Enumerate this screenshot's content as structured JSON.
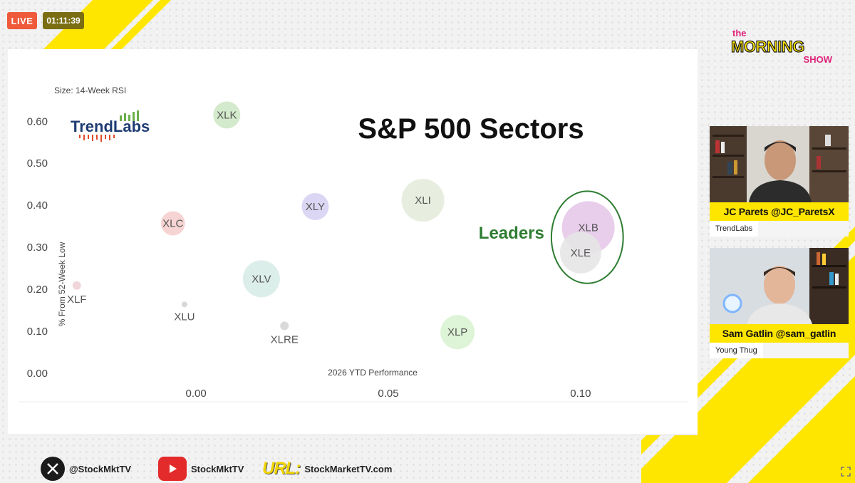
{
  "stream": {
    "live_label": "LIVE",
    "timer": "01:11:39"
  },
  "show_logo": {
    "line1": "the",
    "line2": "MORNING",
    "line3": "SHOW"
  },
  "chart_data": {
    "type": "scatter",
    "title": "S&P 500 Sectors",
    "size_note": "Size: 14-Week RSI",
    "xlabel": "2026 YTD Performance",
    "ylabel": "% From 52-Week Low",
    "xlim": [
      -0.043,
      0.128
    ],
    "ylim": [
      0.0,
      0.67
    ],
    "x_ticks": [
      "0.00",
      "0.05",
      "0.10"
    ],
    "x_tick_values": [
      0.0,
      0.05,
      0.1
    ],
    "y_ticks": [
      "0.00",
      "0.10",
      "0.20",
      "0.30",
      "0.40",
      "0.50",
      "0.60"
    ],
    "y_tick_values": [
      0.0,
      0.1,
      0.2,
      0.3,
      0.4,
      0.5,
      0.6
    ],
    "brand": "TrendLabs",
    "annotation": "Leaders",
    "points": [
      {
        "label": "XLK",
        "x": 0.008,
        "y": 0.615,
        "size": 19,
        "color": "#cfe8c6",
        "label_pos": "center"
      },
      {
        "label": "XLY",
        "x": 0.031,
        "y": 0.397,
        "size": 19,
        "color": "#d7d2f2",
        "label_pos": "center"
      },
      {
        "label": "XLI",
        "x": 0.059,
        "y": 0.412,
        "size": 30,
        "color": "#e4ecdc",
        "label_pos": "center"
      },
      {
        "label": "XLC",
        "x": -0.006,
        "y": 0.357,
        "size": 17,
        "color": "#f6cfcf",
        "label_pos": "center"
      },
      {
        "label": "XLB",
        "x": 0.102,
        "y": 0.347,
        "size": 37,
        "color": "#e7c9ea",
        "label_pos": "center"
      },
      {
        "label": "XLE",
        "x": 0.1,
        "y": 0.287,
        "size": 29,
        "color": "#e6e6e6",
        "label_pos": "center"
      },
      {
        "label": "XLV",
        "x": 0.017,
        "y": 0.225,
        "size": 26,
        "color": "#d8ece8",
        "label_pos": "center"
      },
      {
        "label": "XLF",
        "x": -0.031,
        "y": 0.209,
        "size": 6,
        "color": "#eed2d6",
        "label_pos": "below"
      },
      {
        "label": "XLU",
        "x": -0.003,
        "y": 0.164,
        "size": 4,
        "color": "#d4d4d4",
        "label_pos": "below"
      },
      {
        "label": "XLRE",
        "x": 0.023,
        "y": 0.113,
        "size": 6,
        "color": "#d5d5d5",
        "label_pos": "below"
      },
      {
        "label": "XLP",
        "x": 0.068,
        "y": 0.098,
        "size": 24,
        "color": "#d9f3d2",
        "label_pos": "center"
      }
    ],
    "highlight_group": [
      "XLB",
      "XLE"
    ]
  },
  "guests": [
    {
      "name": "JC Parets @JC_ParetsX",
      "affiliation": "TrendLabs"
    },
    {
      "name": "Sam Gatlin @sam_gatlin",
      "affiliation": "Young Thug"
    }
  ],
  "footer": {
    "x_handle": "@StockMktTV",
    "youtube_handle": "StockMktTV",
    "url_label": "URL:",
    "url": "StockMarketTV.com"
  },
  "colors": {
    "accent": "#ffe600",
    "leaders": "#2e7d32",
    "live": "#ee5a3a"
  }
}
